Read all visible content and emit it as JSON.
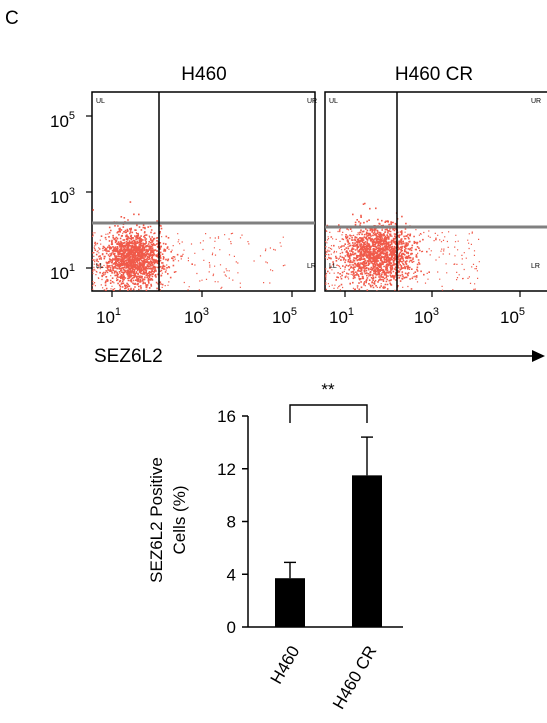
{
  "panel_label": "C",
  "colors": {
    "dots": "#f05a4a",
    "gate": "#808080",
    "bar": "#000000",
    "text": "#000000"
  },
  "flow": {
    "plots": [
      {
        "title": "H460",
        "ticks": [
          "10",
          "10",
          "10"
        ],
        "exponents": [
          "1",
          "3",
          "5"
        ],
        "y_ticks": [
          "10",
          "10",
          "10"
        ],
        "y_exponents": [
          "5",
          "3",
          "1"
        ],
        "quadrants": [
          "UL",
          "UR",
          "LL",
          "LR"
        ]
      },
      {
        "title": "H460 CR",
        "ticks": [
          "10",
          "10",
          "10"
        ],
        "exponents": [
          "1",
          "3",
          "5"
        ],
        "quadrants": [
          "UL",
          "UR",
          "LL",
          "LR"
        ]
      }
    ],
    "x_axis_label": "SEZ6L2"
  },
  "chart_data": {
    "type": "bar",
    "categories": [
      "H460",
      "H460 CR"
    ],
    "values": [
      3.7,
      11.5
    ],
    "errors": [
      1.2,
      2.9
    ],
    "ylabel_line1": "SEZ6L2 Positive",
    "ylabel_line2": "Cells (%)",
    "ylim": [
      0,
      16
    ],
    "yticks": [
      0,
      4,
      8,
      12,
      16
    ],
    "significance": "**"
  }
}
